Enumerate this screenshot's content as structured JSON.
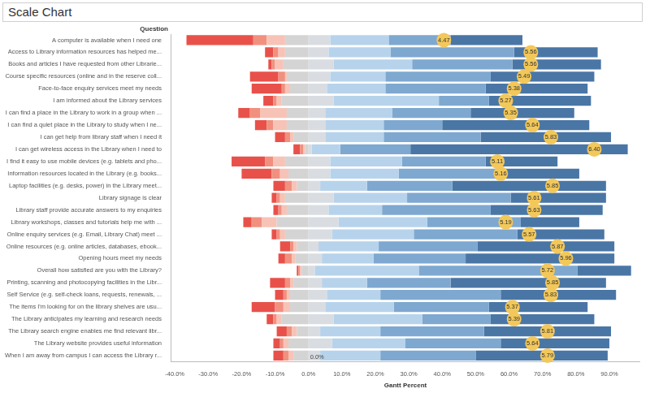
{
  "chart_data": {
    "type": "bar",
    "title": "Scale Chart",
    "ylabel": "Question",
    "xlabel": "Gantt Percent",
    "orientation": "horizontal",
    "stacked": true,
    "grid": false,
    "categories": [
      "A computer is available when I need one",
      "Access to Library information resources has helped me...",
      "Books and articles I have requested from other Librarie...",
      "Course specific resources (online and in the reserve coll...",
      "Face-to-face enquiry services meet my needs",
      "I am informed about the Library services",
      "I can find a place in the Library to work in a group when ...",
      "I can find a quiet place in the Library to study when I ne...",
      "I can get help from library staff when I need it",
      "I can get wireless access in the Library when I need to",
      "I find it easy to use mobile devices (e.g. tablets and pho...",
      "Information resources located in the Library (e.g. books...",
      "Laptop facilities (e.g. desks, power) in the Library meet...",
      "Library signage is clear",
      "Library staff provide accurate answers to my enquiries",
      "Library workshops, classes and tutorials help me with ...",
      "Online enquiry services (e.g. Email, Library Chat) meet ...",
      "Online resources (e.g. online articles, databases, ebook...",
      "Opening hours meet my needs",
      "Overall how satisfied are you with the Library?",
      "Printing, scanning and photocopying facilities in the Libr...",
      "Self Service (e.g. self-check loans, requests, renewals, ...",
      "The items I'm looking for on the library shelves are usu...",
      "The Library anticipates my learning and research needs",
      "The Library search engine enables me find relevant libr...",
      "The Library website provides useful information",
      "When I am away from campus I can access the Library r..."
    ],
    "series": [
      {
        "color": "#d4d4d4",
        "values": [
          -7.0,
          -7.0,
          -7.5,
          -6.5,
          -5.5,
          -8.0,
          -6.5,
          -6.5,
          -4.5,
          -1.0,
          -7.0,
          -6.0,
          -3.5,
          -7.0,
          -6.5,
          -9.5,
          -7.0,
          -3.5,
          -4.0,
          -2.0,
          -4.5,
          -5.5,
          -5.5,
          -8.0,
          -3.5,
          -6.0,
          -4.5
        ]
      },
      {
        "color": "#f7c3b6",
        "values": [
          -5.5,
          -2.0,
          -2.5,
          -0.5,
          -1.5,
          -1.5,
          -8.0,
          -4.0,
          -1.0,
          -0.5,
          -3.5,
          -2.5,
          -1.5,
          -1.5,
          -1.5,
          -4.5,
          -1.5,
          -1.0,
          -1.0,
          -0.5,
          -1.0,
          -1.0,
          -2.0,
          -1.5,
          -1.5,
          -1.5,
          -1.5
        ]
      },
      {
        "color": "#f1907f",
        "values": [
          -4.0,
          -1.5,
          -1.0,
          -2.0,
          -1.0,
          -1.0,
          -3.0,
          -2.0,
          -1.5,
          -1.0,
          -2.5,
          -2.5,
          -2.0,
          -1.0,
          -1.0,
          -3.0,
          -1.0,
          -1.0,
          -2.0,
          -0.5,
          -1.5,
          -1.0,
          -2.5,
          -1.0,
          -1.5,
          -1.0,
          -1.5
        ]
      },
      {
        "color": "#e8514a",
        "values": [
          -20.0,
          -2.5,
          -1.0,
          -8.5,
          -9.0,
          -3.0,
          -3.5,
          -3.5,
          -3.0,
          -2.0,
          -10.0,
          -9.0,
          -3.5,
          -1.5,
          -1.5,
          -2.5,
          -1.5,
          -3.0,
          -2.0,
          -0.5,
          -4.5,
          -2.5,
          -7.0,
          -2.0,
          -3.0,
          -2.0,
          -3.0
        ]
      },
      {
        "color": "#d9dde2",
        "values": [
          6.5,
          6.0,
          7.5,
          6.5,
          5.5,
          7.5,
          5.0,
          5.0,
          5.0,
          1.0,
          6.5,
          6.5,
          3.5,
          7.5,
          6.0,
          9.0,
          7.0,
          3.0,
          4.0,
          2.0,
          4.0,
          5.5,
          5.0,
          7.5,
          3.5,
          7.0,
          3.5
        ]
      },
      {
        "color": "#b7d3ec",
        "values": [
          17.5,
          18.5,
          23.5,
          16.5,
          17.5,
          31.5,
          20.0,
          17.5,
          17.5,
          8.5,
          21.5,
          20.5,
          14.0,
          22.0,
          16.0,
          26.5,
          24.5,
          18.0,
          15.5,
          31.0,
          13.5,
          16.0,
          20.5,
          26.5,
          18.0,
          22.0,
          18.0
        ]
      },
      {
        "color": "#7ea8d0",
        "values": [
          18.5,
          37.0,
          30.0,
          31.5,
          30.0,
          15.0,
          23.5,
          17.5,
          29.0,
          21.0,
          25.0,
          30.5,
          25.5,
          31.0,
          32.5,
          28.0,
          31.0,
          29.5,
          27.5,
          47.5,
          25.0,
          36.0,
          28.5,
          20.5,
          31.0,
          28.5,
          28.5
        ]
      },
      {
        "color": "#4a76a6",
        "values": [
          21.5,
          25.0,
          26.5,
          31.0,
          30.5,
          30.5,
          31.0,
          44.0,
          39.0,
          65.0,
          21.5,
          23.5,
          46.0,
          28.5,
          33.5,
          17.5,
          26.0,
          41.0,
          44.5,
          16.0,
          46.5,
          34.5,
          29.5,
          31.0,
          38.0,
          32.5,
          39.5
        ]
      }
    ],
    "averages": {
      "color": "#f3c85a",
      "marker": "circle",
      "data_labels": true,
      "x": [
        40.5,
        66.5,
        66.5,
        64.5,
        61.5,
        59.0,
        60.5,
        67.0,
        72.5,
        85.5,
        56.5,
        57.5,
        73.0,
        67.5,
        67.5,
        59.0,
        66.0,
        74.5,
        77.0,
        71.5,
        73.0,
        72.5,
        61.0,
        61.5,
        71.5,
        67.0,
        71.5
      ],
      "values": [
        4.47,
        5.56,
        5.56,
        5.49,
        5.38,
        5.27,
        5.35,
        5.64,
        5.83,
        6.4,
        5.11,
        5.16,
        5.85,
        5.61,
        5.63,
        5.19,
        5.57,
        5.87,
        5.96,
        5.72,
        5.85,
        5.83,
        5.37,
        5.39,
        5.81,
        5.64,
        5.79
      ],
      "value_labels": [
        "4.47",
        "5.56",
        "5.56",
        "5.49",
        "5.38",
        "5.27",
        "5.35",
        "5.64",
        "5.83",
        "6.40",
        "5.11",
        "5.16",
        "5.85",
        "5.61",
        "5.63",
        "5.19",
        "5.57",
        "5.87",
        "5.96",
        "5.72",
        "5.85",
        "5.83",
        "5.37",
        "5.39",
        "5.81",
        "5.64",
        "5.79"
      ]
    },
    "annotations": [
      {
        "text": "0.0%",
        "x": 0,
        "y": "When I am away from campus I can access the Library r..."
      }
    ],
    "xlim": [
      -41,
      99
    ],
    "xticks": [
      {
        "value": -40,
        "label": "-40.0%"
      },
      {
        "value": -30,
        "label": "-30.0%"
      },
      {
        "value": -20,
        "label": "-20.0%"
      },
      {
        "value": -10,
        "label": "-10.0%"
      },
      {
        "value": 0,
        "label": "0.0%"
      },
      {
        "value": 10,
        "label": "10.0%"
      },
      {
        "value": 20,
        "label": "20.0%"
      },
      {
        "value": 30,
        "label": "30.0%"
      },
      {
        "value": 40,
        "label": "40.0%"
      },
      {
        "value": 50,
        "label": "50.0%"
      },
      {
        "value": 60,
        "label": "60.0%"
      },
      {
        "value": 70,
        "label": "70.0%"
      },
      {
        "value": 80,
        "label": "80.0%"
      },
      {
        "value": 90,
        "label": "90.0%"
      }
    ]
  }
}
